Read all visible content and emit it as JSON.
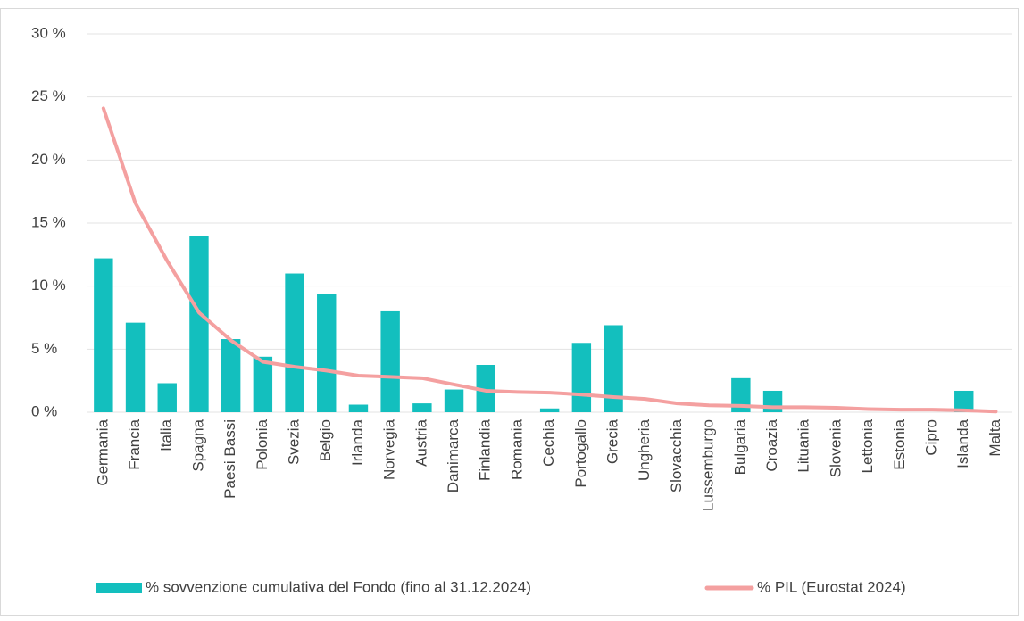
{
  "chart_data": {
    "type": "bar_line",
    "categories": [
      "Germania",
      "Francia",
      "Italia",
      "Spagna",
      "Paesi Bassi",
      "Polonia",
      "Svezia",
      "Belgio",
      "Irlanda",
      "Norvegia",
      "Austria",
      "Danimarca",
      "Finlandia",
      "Romania",
      "Cechia",
      "Portogallo",
      "Grecia",
      "Ungheria",
      "Slovacchia",
      "Lussemburgo",
      "Bulgaria",
      "Croazia",
      "Lituania",
      "Slovenia",
      "Lettonia",
      "Estonia",
      "Cipro",
      "Islanda",
      "Malta"
    ],
    "series": [
      {
        "name": "% sovvenzione cumulativa del Fondo (fino al 31.12.2024)",
        "type": "bar",
        "color": "#13bfbe",
        "values": [
          12.2,
          7.1,
          2.3,
          14.0,
          5.8,
          4.4,
          11.0,
          9.4,
          0.6,
          8.0,
          0.7,
          1.8,
          3.75,
          0,
          0.3,
          5.5,
          6.9,
          0,
          0,
          0,
          2.7,
          1.7,
          0,
          0,
          0,
          0,
          0,
          1.7,
          0
        ]
      },
      {
        "name": "% PIL (Eurostat 2024)",
        "type": "line",
        "color": "#f4a0a0",
        "values": [
          24.1,
          16.6,
          12.0,
          7.9,
          5.7,
          4.0,
          3.6,
          3.3,
          2.9,
          2.8,
          2.7,
          2.2,
          1.7,
          1.6,
          1.55,
          1.4,
          1.2,
          1.05,
          0.7,
          0.55,
          0.5,
          0.4,
          0.4,
          0.35,
          0.25,
          0.2,
          0.2,
          0.15,
          0.05
        ]
      }
    ],
    "ylim": [
      0,
      30
    ],
    "yticks": [
      {
        "value": 0,
        "label": "0 %"
      },
      {
        "value": 5,
        "label": "5 %"
      },
      {
        "value": 10,
        "label": "10 %"
      },
      {
        "value": 15,
        "label": "15 %"
      },
      {
        "value": 20,
        "label": "20 %"
      },
      {
        "value": 25,
        "label": "25 %"
      },
      {
        "value": 30,
        "label": "30 %"
      }
    ],
    "grid": true,
    "legend": "bottom"
  }
}
